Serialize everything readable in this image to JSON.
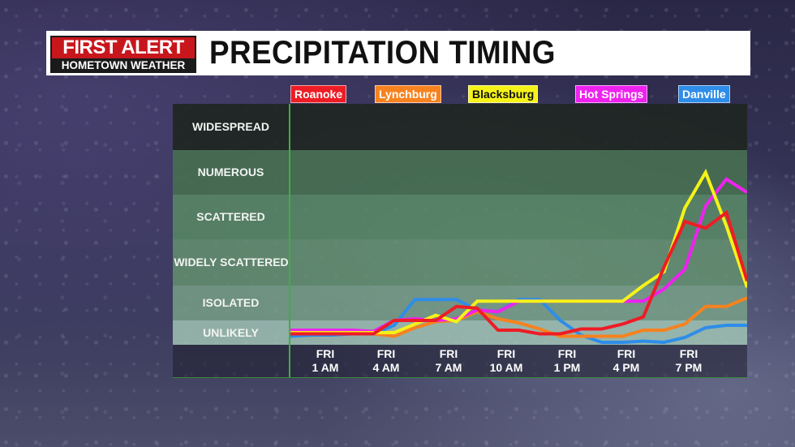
{
  "header": {
    "logo_top": "FIRST ALERT",
    "logo_bottom": "HOMETOWN WEATHER",
    "title": "PRECIPITATION TIMING"
  },
  "legend": [
    {
      "label": "Roanoke",
      "color": "#ee1c25",
      "text_color": "#ffffff"
    },
    {
      "label": "Lynchburg",
      "color": "#f7821e",
      "text_color": "#ffffff"
    },
    {
      "label": "Blacksburg",
      "color": "#f5f218",
      "text_color": "#111111"
    },
    {
      "label": "Hot Springs",
      "color": "#ee22ee",
      "text_color": "#ffffff"
    },
    {
      "label": "Danville",
      "color": "#2e8de8",
      "text_color": "#ffffff"
    }
  ],
  "bands": [
    {
      "label": "WIDESPREAD",
      "color": "rgba(30,38,34,0.92)"
    },
    {
      "label": "NUMEROUS",
      "color": "rgba(70,110,80,0.92)"
    },
    {
      "label": "SCATTERED",
      "color": "rgba(88,135,100,0.88)"
    },
    {
      "label": "WIDELY SCATTERED",
      "color": "rgba(100,145,110,0.85)"
    },
    {
      "label": "ISOLATED",
      "color": "rgba(120,160,135,0.85)"
    },
    {
      "label": "UNLIKELY",
      "color": "rgba(160,195,180,0.85)"
    }
  ],
  "x_ticks": [
    {
      "day": "FRI",
      "time": "1 AM"
    },
    {
      "day": "FRI",
      "time": "4 AM"
    },
    {
      "day": "FRI",
      "time": "7 AM"
    },
    {
      "day": "FRI",
      "time": "10 AM"
    },
    {
      "day": "FRI",
      "time": "1 PM"
    },
    {
      "day": "FRI",
      "time": "4 PM"
    },
    {
      "day": "FRI",
      "time": "7 PM"
    }
  ],
  "chart_data": {
    "type": "line",
    "title": "PRECIPITATION TIMING",
    "xlabel": "",
    "ylabel": "",
    "x": [
      "Fri 12AM",
      "Fri 1AM",
      "Fri 2AM",
      "Fri 3AM",
      "Fri 4AM",
      "Fri 5AM",
      "Fri 6AM",
      "Fri 7AM",
      "Fri 8AM",
      "Fri 9AM",
      "Fri 10AM",
      "Fri 11AM",
      "Fri 12PM",
      "Fri 1PM",
      "Fri 2PM",
      "Fri 3PM",
      "Fri 4PM",
      "Fri 5PM",
      "Fri 6PM",
      "Fri 7PM",
      "Fri 8PM",
      "Fri 9PM",
      "Fri 10PM"
    ],
    "y_categories": [
      "UNLIKELY",
      "ISOLATED",
      "WIDELY SCATTERED",
      "SCATTERED",
      "NUMEROUS",
      "WIDESPREAD"
    ],
    "y_scale_note": "0=bottom of UNLIKELY, 1=UNLIKELY/ISOLATED boundary, 2=ISOLATED/WIDELY SCATTERED, 3=WIDELY SCATTERED/SCATTERED, 4=SCATTERED/NUMEROUS, 5=NUMEROUS/WIDESPREAD, 6=top",
    "series": [
      {
        "name": "Roanoke",
        "color": "#ee1c25",
        "values": [
          0.45,
          0.45,
          0.45,
          0.45,
          0.45,
          1.0,
          1.0,
          1.0,
          1.4,
          1.35,
          0.6,
          0.6,
          0.45,
          0.45,
          0.65,
          0.65,
          0.85,
          1.1,
          2.4,
          3.4,
          3.25,
          3.6,
          2.1
        ]
      },
      {
        "name": "Lynchburg",
        "color": "#f7821e",
        "values": [
          0.45,
          0.45,
          0.45,
          0.45,
          0.45,
          0.35,
          0.7,
          0.95,
          1.0,
          1.25,
          1.05,
          0.9,
          0.65,
          0.35,
          0.35,
          0.35,
          0.35,
          0.6,
          0.6,
          0.85,
          1.4,
          1.4,
          1.65
        ]
      },
      {
        "name": "Blacksburg",
        "color": "#f5f218",
        "values": [
          0.5,
          0.5,
          0.5,
          0.5,
          0.5,
          0.5,
          0.85,
          1.15,
          0.95,
          1.55,
          1.55,
          1.55,
          1.55,
          1.55,
          1.55,
          1.55,
          1.55,
          2.0,
          2.3,
          3.7,
          4.5,
          3.3,
          1.95
        ]
      },
      {
        "name": "Hot Springs",
        "color": "#ee22ee",
        "values": [
          0.6,
          0.6,
          0.6,
          0.6,
          0.55,
          1.0,
          1.05,
          1.0,
          1.05,
          1.3,
          1.25,
          1.55,
          1.55,
          1.55,
          1.55,
          1.55,
          1.55,
          1.55,
          1.9,
          2.35,
          3.75,
          4.35,
          4.05
        ]
      },
      {
        "name": "Danville",
        "color": "#2e8de8",
        "values": [
          0.35,
          0.4,
          0.4,
          0.45,
          0.45,
          0.8,
          1.6,
          1.6,
          1.6,
          1.3,
          1.25,
          1.6,
          1.6,
          1.0,
          0.4,
          0.1,
          0.1,
          0.15,
          0.1,
          0.3,
          0.7,
          0.8,
          0.8
        ]
      }
    ],
    "grid": false,
    "legend_position": "top"
  }
}
